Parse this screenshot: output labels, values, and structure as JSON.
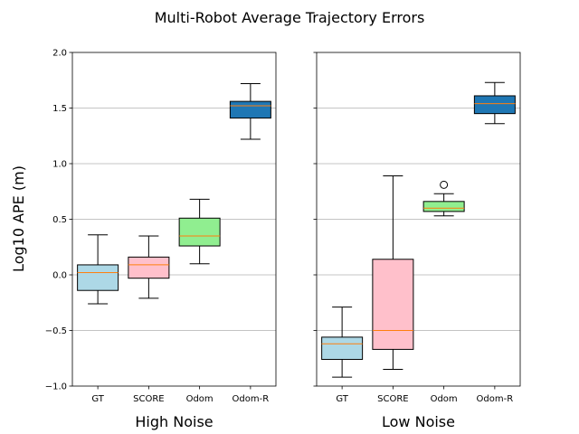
{
  "chart_data": {
    "type": "box",
    "title": "Multi-Robot Average Trajectory Errors",
    "ylabel": "Log10 APE (m)",
    "ylim": [
      -1.0,
      2.0
    ],
    "yticks": [
      -1.0,
      -0.5,
      0.0,
      0.5,
      1.0,
      1.5,
      2.0
    ],
    "ytick_labels": [
      "−1.0",
      "−0.5",
      "0.0",
      "0.5",
      "1.0",
      "1.5",
      "2.0"
    ],
    "grid": "horizontal",
    "categories": [
      "GT",
      "SCORE",
      "Odom",
      "Odom-R"
    ],
    "colors": [
      "#add8e6",
      "#ffc0cb",
      "#90ee90",
      "#1f77b4"
    ],
    "median_color": "#ff7f0e",
    "panels": [
      {
        "xlabel": "High Noise",
        "boxes": [
          {
            "category": "GT",
            "whislo": -0.26,
            "q1": -0.14,
            "med": 0.02,
            "q3": 0.09,
            "whishi": 0.36,
            "fliers": []
          },
          {
            "category": "SCORE",
            "whislo": -0.21,
            "q1": -0.03,
            "med": 0.09,
            "q3": 0.16,
            "whishi": 0.35,
            "fliers": []
          },
          {
            "category": "Odom",
            "whislo": 0.1,
            "q1": 0.26,
            "med": 0.35,
            "q3": 0.51,
            "whishi": 0.68,
            "fliers": []
          },
          {
            "category": "Odom-R",
            "whislo": 1.22,
            "q1": 1.41,
            "med": 1.52,
            "q3": 1.56,
            "whishi": 1.72,
            "fliers": []
          }
        ]
      },
      {
        "xlabel": "Low Noise",
        "boxes": [
          {
            "category": "GT",
            "whislo": -0.92,
            "q1": -0.76,
            "med": -0.62,
            "q3": -0.56,
            "whishi": -0.29,
            "fliers": []
          },
          {
            "category": "SCORE",
            "whislo": -0.85,
            "q1": -0.67,
            "med": -0.5,
            "q3": 0.14,
            "whishi": 0.89,
            "fliers": []
          },
          {
            "category": "Odom",
            "whislo": 0.53,
            "q1": 0.57,
            "med": 0.6,
            "q3": 0.66,
            "whishi": 0.73,
            "fliers": [
              0.81
            ]
          },
          {
            "category": "Odom-R",
            "whislo": 1.36,
            "q1": 1.45,
            "med": 1.54,
            "q3": 1.61,
            "whishi": 1.73,
            "fliers": []
          }
        ]
      }
    ]
  }
}
